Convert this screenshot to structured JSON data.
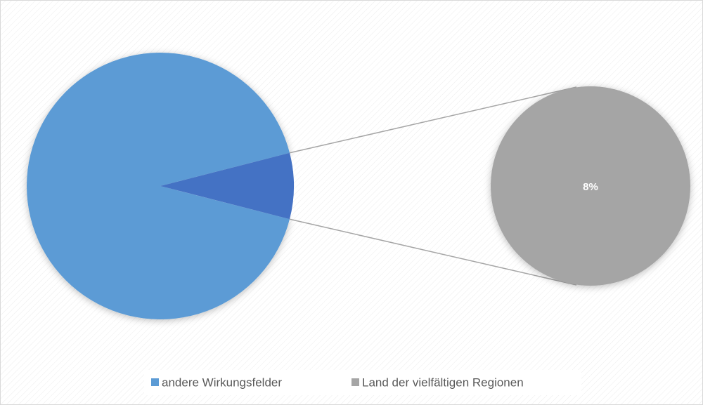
{
  "chart_data": {
    "type": "pie-of-pie",
    "categories": [
      "andere Wirkungsfelder",
      "Land der vielfältigen Regionen"
    ],
    "values": [
      92,
      8
    ],
    "value_labels": [
      null,
      "8%"
    ],
    "colors": [
      "#5b9bd5",
      "#a5a5a5"
    ],
    "split_color": "#4472c4",
    "legend": "bottom"
  }
}
